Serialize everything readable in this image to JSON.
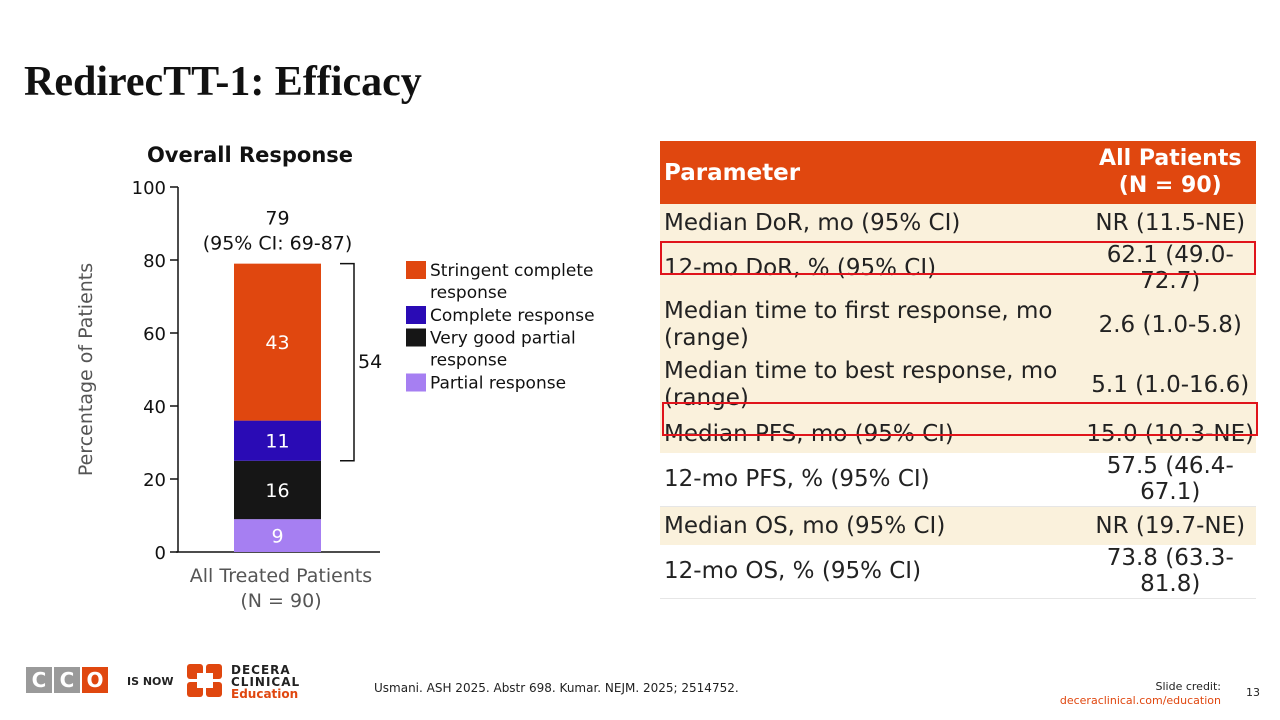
{
  "slide": {
    "title": "RedirecTT-1: Efficacy",
    "citation": "Usmani. ASH 2025. Abstr 698. Kumar. NEJM. 2025; 2514752.",
    "page_number": "13"
  },
  "colors": {
    "accent": "#e0470f",
    "highlight": "#e0141b",
    "table_shade": "#faf1dc",
    "scr": "#e0470f",
    "cr": "#2a0bb5",
    "vgpr": "#161616",
    "pr": "#a67ff2"
  },
  "chart_data": {
    "type": "bar",
    "stacked": true,
    "title": "Overall Response",
    "ylabel": "Percentage of Patients",
    "xlabel": "",
    "ylim": [
      0,
      100
    ],
    "yticks": [
      0,
      20,
      40,
      60,
      80,
      100
    ],
    "categories": [
      "All Treated Patients (N = 90)"
    ],
    "category_label_lines": [
      "All Treated Patients",
      "(N = 90)"
    ],
    "series": [
      {
        "name": "Partial response",
        "values": [
          9
        ],
        "color": "#a67ff2"
      },
      {
        "name": "Very good partial response",
        "values": [
          16
        ],
        "color": "#161616"
      },
      {
        "name": "Complete response",
        "values": [
          11
        ],
        "color": "#2a0bb5"
      },
      {
        "name": "Stringent complete response",
        "values": [
          43
        ],
        "color": "#e0470f"
      }
    ],
    "legend_order": [
      {
        "lines": [
          "Stringent complete",
          "response"
        ],
        "color": "#e0470f"
      },
      {
        "lines": [
          "Complete response"
        ],
        "color": "#2a0bb5"
      },
      {
        "lines": [
          "Very good partial",
          "response"
        ],
        "color": "#161616"
      },
      {
        "lines": [
          "Partial response"
        ],
        "color": "#a67ff2"
      }
    ],
    "total_label": [
      "79",
      "(95% CI: 69-87)"
    ],
    "bracket": {
      "label": "54",
      "from": 25,
      "to": 79
    },
    "legend": "right",
    "grid": false
  },
  "table": {
    "header": {
      "param": "Parameter",
      "value_line1": "All Patients",
      "value_line2": "(N = 90)"
    },
    "rows": [
      {
        "param": "Median DoR, mo (95% CI)",
        "value": "NR (11.5-NE)"
      },
      {
        "param": "12-mo DoR, % (95% CI)",
        "value": "62.1 (49.0-72.7)"
      },
      {
        "param": "Median time to first response, mo (range)",
        "value": "2.6 (1.0-5.8)"
      },
      {
        "param": "Median time to best response, mo (range)",
        "value": "5.1 (1.0-16.6)"
      },
      {
        "param": "Median PFS, mo (95% CI)",
        "value": "15.0 (10.3-NE)"
      },
      {
        "param": "12-mo PFS, % (95% CI)",
        "value": "57.5 (46.4-67.1)"
      },
      {
        "param": "Median OS, mo (95% CI)",
        "value": "NR (19.7-NE)"
      },
      {
        "param": "12-mo OS, % (95% CI)",
        "value": "73.8 (63.3-81.8)"
      }
    ]
  },
  "footer": {
    "cco_letters": [
      "C",
      "C",
      "O"
    ],
    "is_now": "IS NOW",
    "decera_line1": "DECERA",
    "decera_line2": "CLINICAL",
    "decera_line3": "Education",
    "credit_label": "Slide credit:",
    "credit_link": "deceraclinical.com/education"
  }
}
